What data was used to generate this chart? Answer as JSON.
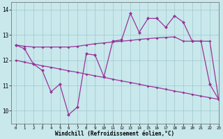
{
  "x": [
    0,
    1,
    2,
    3,
    4,
    5,
    6,
    7,
    8,
    9,
    10,
    11,
    12,
    13,
    14,
    15,
    16,
    17,
    18,
    19,
    20,
    21,
    22,
    23
  ],
  "line_jagged": [
    12.6,
    12.45,
    11.85,
    11.6,
    10.75,
    11.05,
    9.85,
    10.15,
    12.25,
    12.2,
    11.35,
    12.75,
    12.8,
    13.85,
    13.1,
    13.65,
    13.65,
    13.3,
    13.75,
    13.5,
    12.75,
    12.75,
    11.05,
    10.45
  ],
  "line_upper": [
    12.6,
    12.55,
    12.52,
    12.52,
    12.52,
    12.52,
    12.52,
    12.55,
    12.6,
    12.65,
    12.68,
    12.72,
    12.75,
    12.78,
    12.82,
    12.85,
    12.88,
    12.9,
    12.92,
    12.75,
    12.75,
    12.75,
    12.75,
    10.45
  ],
  "line_lower": [
    12.0,
    11.92,
    11.85,
    11.78,
    11.72,
    11.65,
    11.58,
    11.52,
    11.45,
    11.38,
    11.32,
    11.25,
    11.18,
    11.12,
    11.05,
    10.98,
    10.92,
    10.85,
    10.78,
    10.72,
    10.65,
    10.58,
    10.52,
    10.45
  ],
  "xlabel": "Windchill (Refroidissement éolien,°C)",
  "xlim": [
    -0.5,
    23
  ],
  "ylim": [
    9.5,
    14.3
  ],
  "yticks": [
    10,
    11,
    12,
    13,
    14
  ],
  "xticks": [
    0,
    1,
    2,
    3,
    4,
    5,
    6,
    7,
    8,
    9,
    10,
    11,
    12,
    13,
    14,
    15,
    16,
    17,
    18,
    19,
    20,
    21,
    22,
    23
  ],
  "bg_color": "#c8e8ec",
  "grid_color": "#a0c8cc",
  "line_color": "#993399",
  "marker": "D",
  "markersize_jagged": 2.5,
  "markersize_envelope": 2.0,
  "linewidth_jagged": 0.9,
  "linewidth_envelope": 0.9
}
